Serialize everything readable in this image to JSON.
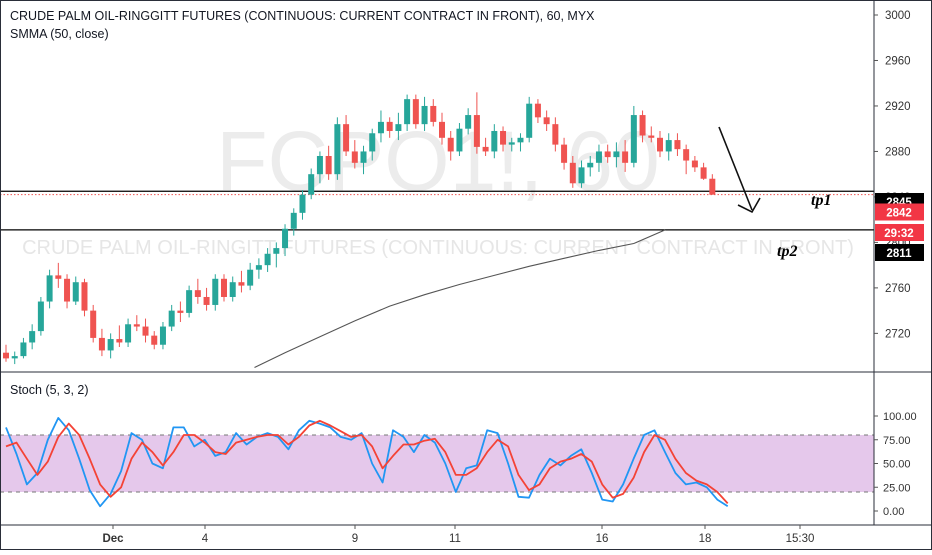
{
  "header": {
    "title": "CRUDE PALM OIL-RINGGITT FUTURES (CONTINUOUS: CURRENT CONTRACT IN FRONT), 60, MYX",
    "ma_label": "SMMA (50, close)",
    "watermark_symbol": "FCPO1!, 60",
    "watermark_name": "CRUDE PALM OIL-RINGITT FUTURES (CONTINUOUS: CURRENT CONTRACT IN FRONT)"
  },
  "stoch_label": "Stoch (5, 3, 2)",
  "annotations": {
    "tp1": "tp1",
    "tp2": "tp2"
  },
  "price_badges": [
    {
      "value": "2845",
      "style": "black"
    },
    {
      "value": "2842",
      "style": "red"
    },
    {
      "value": "29:32",
      "style": "red"
    },
    {
      "value": "2811",
      "style": "black"
    }
  ],
  "colors": {
    "up": "#26a69a",
    "down": "#ef5350",
    "ma": "#555555",
    "stoch_k": "#2196f3",
    "stoch_d": "#f44336",
    "stoch_band": "#e1bee7",
    "badge_black": "#000000",
    "badge_red": "#f23645"
  },
  "chart_data": [
    {
      "type": "candlestick",
      "ylim": [
        2690,
        3010
      ],
      "y_ticks": [
        3000,
        2960,
        2920,
        2880,
        2840,
        2800,
        2760,
        2720
      ],
      "x_ticks": [
        "Dec",
        "4",
        "9",
        "11",
        "16",
        "18",
        "15:30"
      ],
      "levels": [
        2845,
        2811
      ],
      "last_price": 2842,
      "sma_series": [
        [
          28.5,
          2690
        ],
        [
          32,
          2703
        ],
        [
          36,
          2717
        ],
        [
          40,
          2731
        ],
        [
          44,
          2744
        ],
        [
          48,
          2754
        ],
        [
          52,
          2763
        ],
        [
          56,
          2771
        ],
        [
          60,
          2779
        ],
        [
          64,
          2786
        ],
        [
          68,
          2793
        ],
        [
          72,
          2799
        ],
        [
          75.6,
          2811
        ]
      ],
      "candles": [
        [
          2703,
          2710,
          2695,
          2698
        ],
        [
          2698,
          2704,
          2693,
          2700
        ],
        [
          2700,
          2716,
          2698,
          2712
        ],
        [
          2712,
          2728,
          2706,
          2722
        ],
        [
          2722,
          2752,
          2718,
          2748
        ],
        [
          2748,
          2776,
          2742,
          2771
        ],
        [
          2771,
          2782,
          2760,
          2768
        ],
        [
          2768,
          2772,
          2742,
          2748
        ],
        [
          2748,
          2770,
          2745,
          2765
        ],
        [
          2765,
          2768,
          2735,
          2740
        ],
        [
          2740,
          2745,
          2712,
          2716
        ],
        [
          2716,
          2724,
          2700,
          2705
        ],
        [
          2705,
          2720,
          2698,
          2715
        ],
        [
          2715,
          2727,
          2708,
          2712
        ],
        [
          2712,
          2733,
          2708,
          2728
        ],
        [
          2728,
          2736,
          2722,
          2726
        ],
        [
          2726,
          2733,
          2712,
          2718
        ],
        [
          2718,
          2722,
          2706,
          2710
        ],
        [
          2710,
          2730,
          2706,
          2726
        ],
        [
          2726,
          2745,
          2722,
          2740
        ],
        [
          2740,
          2748,
          2730,
          2738
        ],
        [
          2738,
          2762,
          2734,
          2758
        ],
        [
          2758,
          2768,
          2746,
          2752
        ],
        [
          2752,
          2760,
          2740,
          2745
        ],
        [
          2745,
          2772,
          2740,
          2768
        ],
        [
          2768,
          2772,
          2748,
          2752
        ],
        [
          2752,
          2770,
          2748,
          2765
        ],
        [
          2765,
          2775,
          2756,
          2762
        ],
        [
          2762,
          2782,
          2758,
          2776
        ],
        [
          2776,
          2786,
          2768,
          2780
        ],
        [
          2780,
          2795,
          2774,
          2790
        ],
        [
          2790,
          2800,
          2778,
          2795
        ],
        [
          2795,
          2816,
          2788,
          2812
        ],
        [
          2812,
          2830,
          2806,
          2826
        ],
        [
          2826,
          2846,
          2820,
          2842
        ],
        [
          2842,
          2865,
          2838,
          2860
        ],
        [
          2860,
          2880,
          2852,
          2876
        ],
        [
          2876,
          2885,
          2855,
          2860
        ],
        [
          2860,
          2910,
          2855,
          2904
        ],
        [
          2904,
          2912,
          2876,
          2880
        ],
        [
          2880,
          2890,
          2865,
          2870
        ],
        [
          2870,
          2885,
          2860,
          2880
        ],
        [
          2880,
          2900,
          2872,
          2896
        ],
        [
          2896,
          2916,
          2888,
          2906
        ],
        [
          2906,
          2910,
          2892,
          2898
        ],
        [
          2898,
          2914,
          2890,
          2904
        ],
        [
          2904,
          2930,
          2898,
          2926
        ],
        [
          2926,
          2930,
          2900,
          2904
        ],
        [
          2904,
          2928,
          2898,
          2920
        ],
        [
          2920,
          2926,
          2902,
          2906
        ],
        [
          2906,
          2914,
          2886,
          2892
        ],
        [
          2892,
          2898,
          2872,
          2880
        ],
        [
          2880,
          2905,
          2876,
          2900
        ],
        [
          2900,
          2918,
          2895,
          2912
        ],
        [
          2912,
          2932,
          2878,
          2884
        ],
        [
          2884,
          2892,
          2876,
          2880
        ],
        [
          2880,
          2904,
          2874,
          2898
        ],
        [
          2898,
          2902,
          2880,
          2886
        ],
        [
          2886,
          2892,
          2880,
          2888
        ],
        [
          2888,
          2896,
          2880,
          2892
        ],
        [
          2892,
          2928,
          2888,
          2922
        ],
        [
          2922,
          2926,
          2905,
          2910
        ],
        [
          2910,
          2916,
          2898,
          2904
        ],
        [
          2904,
          2910,
          2880,
          2886
        ],
        [
          2886,
          2892,
          2864,
          2870
        ],
        [
          2870,
          2876,
          2848,
          2852
        ],
        [
          2852,
          2872,
          2848,
          2866
        ],
        [
          2866,
          2876,
          2858,
          2870
        ],
        [
          2870,
          2886,
          2862,
          2880
        ],
        [
          2880,
          2886,
          2870,
          2875
        ],
        [
          2875,
          2888,
          2866,
          2880
        ],
        [
          2880,
          2890,
          2862,
          2870
        ],
        [
          2870,
          2920,
          2866,
          2912
        ],
        [
          2912,
          2916,
          2888,
          2894
        ],
        [
          2894,
          2902,
          2888,
          2892
        ],
        [
          2892,
          2898,
          2875,
          2880
        ],
        [
          2880,
          2896,
          2872,
          2890
        ],
        [
          2890,
          2896,
          2876,
          2882
        ],
        [
          2882,
          2886,
          2860,
          2872
        ],
        [
          2872,
          2876,
          2862,
          2866
        ],
        [
          2866,
          2870,
          2855,
          2856
        ],
        [
          2856,
          2860,
          2842,
          2842
        ]
      ]
    },
    {
      "type": "line",
      "ylim": [
        0,
        100
      ],
      "y_ticks": [
        "100.00",
        "75.00",
        "50.00",
        "25.00",
        "0.00"
      ],
      "band": [
        20,
        80
      ],
      "series": [
        {
          "values": [
            88,
            60,
            28,
            40,
            75,
            98,
            85,
            55,
            22,
            5,
            18,
            42,
            82,
            75,
            50,
            45,
            88,
            88,
            68,
            75,
            58,
            62,
            82,
            70,
            78,
            82,
            78,
            65,
            85,
            95,
            92,
            88,
            78,
            75,
            82,
            50,
            30,
            85,
            78,
            62,
            80,
            72,
            50,
            20,
            45,
            48,
            85,
            82,
            50,
            15,
            14,
            38,
            55,
            48,
            58,
            65,
            40,
            12,
            10,
            28,
            55,
            80,
            85,
            62,
            40,
            28,
            30,
            25,
            12,
            5
          ]
        },
        {
          "values": [
            68,
            72,
            55,
            38,
            52,
            78,
            92,
            80,
            55,
            28,
            15,
            25,
            55,
            72,
            62,
            48,
            62,
            80,
            80,
            72,
            62,
            60,
            72,
            75,
            78,
            80,
            80,
            70,
            78,
            90,
            95,
            90,
            84,
            78,
            80,
            68,
            45,
            58,
            70,
            70,
            74,
            76,
            62,
            38,
            38,
            45,
            62,
            75,
            68,
            38,
            22,
            28,
            45,
            52,
            55,
            60,
            52,
            28,
            14,
            18,
            35,
            62,
            80,
            75,
            55,
            40,
            32,
            28,
            20,
            8
          ]
        }
      ]
    }
  ]
}
